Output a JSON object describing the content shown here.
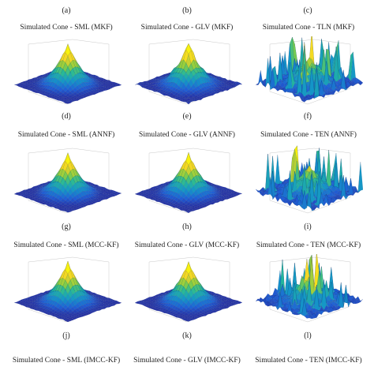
{
  "figure": {
    "top_labels": [
      "(a)",
      "(b)",
      "(c)"
    ],
    "rows": [
      {
        "titles": [
          "Simulated Cone - SML (MKF)",
          "Simulated Cone - GLV (MKF)",
          "Simulated Cone - TLN (MKF)"
        ],
        "labels": [
          "(d)",
          "(e)",
          "(f)"
        ]
      },
      {
        "titles": [
          "Simulated Cone - SML (ANNF)",
          "Simulated Cone - GLV (ANNF)",
          "Simulated Cone - TEN (ANNF)"
        ],
        "labels": [
          "(g)",
          "(h)",
          "(i)"
        ]
      },
      {
        "titles": [
          "Simulated Cone - SML (MCC-KF)",
          "Simulated Cone - GLV (MCC-KF)",
          "Simulated Cone - TEN (MCC-KF)"
        ],
        "labels": [
          "(j)",
          "(k)",
          "(l)"
        ]
      },
      {
        "titles": [
          "Simulated Cone - SML (IMCC-KF)",
          "Simulated Cone - GLV (IMCC-KF)",
          "Simulated Cone - TEN (IMCC-KF)"
        ],
        "labels": []
      }
    ],
    "colormap": [
      "#2a1a8c",
      "#1f5fd6",
      "#1496c8",
      "#25b89a",
      "#8ccf3f",
      "#f2d229",
      "#f9f10e"
    ]
  }
}
